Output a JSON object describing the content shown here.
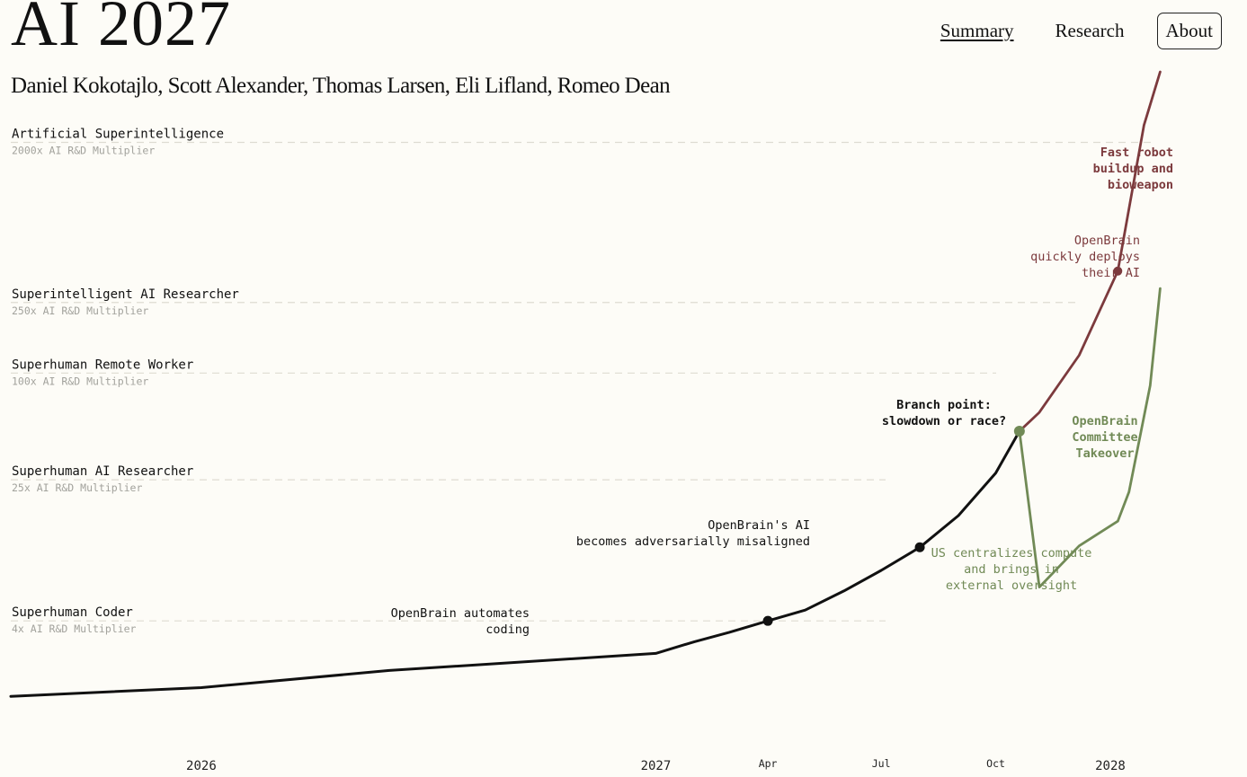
{
  "header": {
    "title": "AI 2027",
    "authors": "Daniel Kokotajlo, Scott Alexander, Thomas Larsen, Eli Lifland, Romeo Dean"
  },
  "nav": {
    "items": [
      {
        "label": "Summary",
        "state": "current"
      },
      {
        "label": "Research",
        "state": "normal"
      },
      {
        "label": "About",
        "state": "boxed"
      }
    ]
  },
  "chart_data": {
    "type": "line",
    "colors": {
      "main": "#111111",
      "race": "#7c3a3d",
      "slowdown": "#718a56",
      "milestone_label": "#111111",
      "milestone_sub": "#a2a29c",
      "gridline": "#dedbd2"
    },
    "x_ticks": [
      {
        "label": "2026",
        "x": "2026-01-01",
        "style": "year"
      },
      {
        "label": "2027",
        "x": "2027-01-01",
        "style": "year"
      },
      {
        "label": "Apr",
        "x": "2027-04-01",
        "style": "month"
      },
      {
        "label": "Jul",
        "x": "2027-07-01",
        "style": "month"
      },
      {
        "label": "Oct",
        "x": "2027-10-01",
        "style": "month"
      },
      {
        "label": "2028",
        "x": "2028-01-01",
        "style": "year"
      }
    ],
    "x_range": [
      "2025-08-01",
      "2028-04-01"
    ],
    "y_scale": "log",
    "y_range": [
      1,
      5000
    ],
    "milestones": [
      {
        "name": "Superhuman Coder",
        "multiplier_label": "4x AI R&D Multiplier",
        "y": 4
      },
      {
        "name": "Superhuman AI Researcher",
        "multiplier_label": "25x AI R&D Multiplier",
        "y": 25
      },
      {
        "name": "Superhuman Remote Worker",
        "multiplier_label": "100x AI R&D Multiplier",
        "y": 100
      },
      {
        "name": "Superintelligent AI Researcher",
        "multiplier_label": "250x AI R&D Multiplier",
        "y": 250
      },
      {
        "name": "Artificial Superintelligence",
        "multiplier_label": "2000x AI R&D Multiplier",
        "y": 2000
      }
    ],
    "series": [
      {
        "id": "main",
        "points": [
          {
            "x": "2025-08-01",
            "y": 1.5
          },
          {
            "x": "2026-01-01",
            "y": 1.68
          },
          {
            "x": "2026-06-01",
            "y": 2.1
          },
          {
            "x": "2027-01-01",
            "y": 2.62
          },
          {
            "x": "2027-02-01",
            "y": 3.05
          },
          {
            "x": "2027-03-01",
            "y": 3.45
          },
          {
            "x": "2027-04-01",
            "y": 4.0
          },
          {
            "x": "2027-05-01",
            "y": 4.6
          },
          {
            "x": "2027-06-01",
            "y": 5.9
          },
          {
            "x": "2027-07-01",
            "y": 7.7
          },
          {
            "x": "2027-08-01",
            "y": 10.4
          },
          {
            "x": "2027-09-01",
            "y": 15.7
          },
          {
            "x": "2027-10-01",
            "y": 27.3
          },
          {
            "x": "2027-10-20",
            "y": 47.0
          }
        ]
      },
      {
        "id": "race",
        "points": [
          {
            "x": "2027-10-20",
            "y": 47.0
          },
          {
            "x": "2027-11-05",
            "y": 60.0
          },
          {
            "x": "2027-12-07",
            "y": 126.0
          },
          {
            "x": "2028-01-07",
            "y": 376.0
          },
          {
            "x": "2028-01-28",
            "y": 2500.0
          },
          {
            "x": "2028-02-10",
            "y": 5000.0
          }
        ]
      },
      {
        "id": "slowdown",
        "points": [
          {
            "x": "2027-10-20",
            "y": 47.0
          },
          {
            "x": "2027-11-05",
            "y": 6.2
          },
          {
            "x": "2027-12-07",
            "y": 10.6
          },
          {
            "x": "2028-01-07",
            "y": 14.6
          },
          {
            "x": "2028-01-16",
            "y": 21.3
          },
          {
            "x": "2028-02-02",
            "y": 85.0
          },
          {
            "x": "2028-02-10",
            "y": 300.0
          }
        ]
      }
    ],
    "events": [
      {
        "id": "coding",
        "series": "main",
        "x": "2027-04-01",
        "y": 4.0,
        "label": [
          "OpenBrain automates",
          "coding"
        ],
        "color": "#111111",
        "bold": false
      },
      {
        "id": "misaligned",
        "series": "main",
        "x": "2027-08-01",
        "y": 10.4,
        "label": [
          "OpenBrain's AI",
          "becomes adversarially misaligned"
        ],
        "color": "#111111",
        "bold": false
      },
      {
        "id": "branch",
        "series": "main",
        "x": "2027-10-20",
        "y": 47.0,
        "label": [
          "Branch point:",
          "slowdown or race?"
        ],
        "color": "#111111",
        "bold": true
      },
      {
        "id": "deploy",
        "series": "race",
        "x": "2028-01-07",
        "y": 376.0,
        "label": [
          "OpenBrain",
          "quickly deploys",
          "their AI"
        ],
        "color": "#7c3a3d",
        "bold": false
      },
      {
        "id": "robot",
        "series": "race",
        "label": [
          "Fast robot",
          "buildup and",
          "bioweapon"
        ],
        "color": "#7c3a3d",
        "bold": true
      },
      {
        "id": "centralize",
        "series": "slowdown",
        "label": [
          "US centralizes compute",
          "and brings in",
          "external oversight"
        ],
        "color": "#718a56",
        "bold": false
      },
      {
        "id": "committee",
        "series": "slowdown",
        "label": [
          "OpenBrain",
          "Committee",
          "Takeover"
        ],
        "color": "#718a56",
        "bold": true
      }
    ]
  }
}
